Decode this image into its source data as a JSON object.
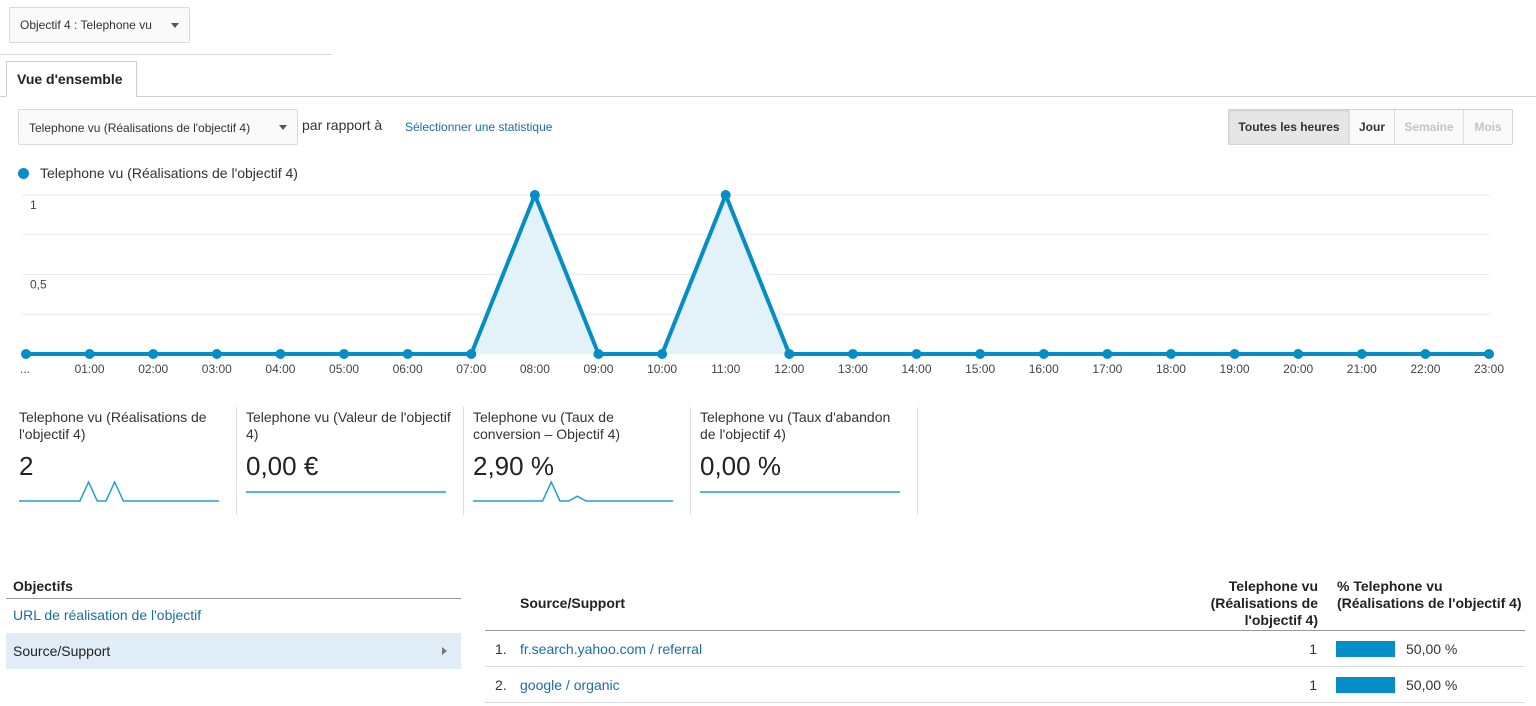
{
  "goal_selector": {
    "label": "Objectif 4 : Telephone vu"
  },
  "tabs": [
    {
      "label": "Vue d'ensemble"
    }
  ],
  "toolbar": {
    "metric_label": "Telephone vu (Réalisations de l'objectif 4)",
    "compare_label": "par rapport à",
    "select_stat_label": "Sélectionner une statistique",
    "period_buttons": [
      {
        "label": "Toutes les heures",
        "state": "active"
      },
      {
        "label": "Jour",
        "state": "enabled"
      },
      {
        "label": "Semaine",
        "state": "disabled"
      },
      {
        "label": "Mois",
        "state": "disabled"
      }
    ]
  },
  "chart_data": {
    "type": "area",
    "legend_position": "top-left",
    "grid": true,
    "color": "#058dc7",
    "x": [
      "...",
      "01:00",
      "02:00",
      "03:00",
      "04:00",
      "05:00",
      "06:00",
      "07:00",
      "08:00",
      "09:00",
      "10:00",
      "11:00",
      "12:00",
      "13:00",
      "14:00",
      "15:00",
      "16:00",
      "17:00",
      "18:00",
      "19:00",
      "20:00",
      "21:00",
      "22:00",
      "23:00"
    ],
    "series": [
      {
        "name": "Telephone vu (Réalisations de l'objectif 4)",
        "values": [
          0,
          0,
          0,
          0,
          0,
          0,
          0,
          0,
          1,
          0,
          0,
          1,
          0,
          0,
          0,
          0,
          0,
          0,
          0,
          0,
          0,
          0,
          0,
          0
        ]
      }
    ],
    "yticks": [
      "1",
      "0,5"
    ],
    "ylim": [
      0,
      1
    ]
  },
  "scorecards": [
    {
      "title": "Telephone vu (Réalisations de l'objectif 4)",
      "value": "2",
      "sparkline": [
        0,
        0,
        0,
        0,
        0,
        0,
        0,
        0,
        1,
        0,
        0,
        1,
        0,
        0,
        0,
        0,
        0,
        0,
        0,
        0,
        0,
        0,
        0,
        0
      ]
    },
    {
      "title": "Telephone vu (Valeur de l'objectif 4)",
      "value": "0,00 €",
      "sparkline": [
        0,
        0,
        0,
        0,
        0,
        0,
        0,
        0,
        0,
        0,
        0,
        0,
        0,
        0,
        0,
        0,
        0,
        0,
        0,
        0,
        0,
        0,
        0,
        0
      ]
    },
    {
      "title": "Telephone vu (Taux de conversion – Objectif 4)",
      "value": "2,90 %",
      "sparkline": [
        0,
        0,
        0,
        0,
        0,
        0,
        0,
        0,
        0,
        1,
        0,
        0,
        0.25,
        0,
        0,
        0,
        0,
        0,
        0,
        0,
        0,
        0,
        0,
        0
      ]
    },
    {
      "title": "Telephone vu (Taux d'abandon de l'objectif 4)",
      "value": "0,00 %",
      "sparkline": [
        0,
        0,
        0,
        0,
        0,
        0,
        0,
        0,
        0,
        0,
        0,
        0,
        0,
        0,
        0,
        0,
        0,
        0,
        0,
        0,
        0,
        0,
        0,
        0
      ]
    }
  ],
  "objectives": {
    "header": "Objectifs",
    "link": "URL de réalisation de l'objectif",
    "selected": "Source/Support"
  },
  "table": {
    "col_source": "Source/Support",
    "col_goal": "Telephone vu (Réalisations de l'objectif 4)",
    "col_pct": "% Telephone vu (Réalisations de l'objectif 4)",
    "rows": [
      {
        "index": "1.",
        "source": "fr.search.yahoo.com / referral",
        "count": "1",
        "pct": "50,00 %",
        "share": 0.5
      },
      {
        "index": "2.",
        "source": "google / organic",
        "count": "1",
        "pct": "50,00 %",
        "share": 0.5
      }
    ]
  }
}
